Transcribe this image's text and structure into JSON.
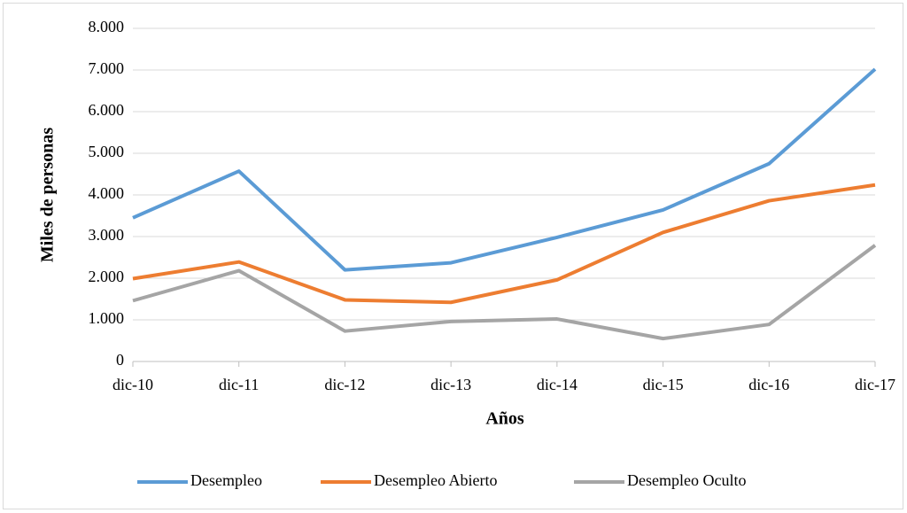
{
  "chart_data": {
    "type": "line",
    "categories": [
      "dic-10",
      "dic-11",
      "dic-12",
      "dic-13",
      "dic-14",
      "dic-15",
      "dic-16",
      "dic-17"
    ],
    "series": [
      {
        "name": "Desempleo",
        "color": "#5b9bd5",
        "values": [
          3450,
          4570,
          2200,
          2370,
          2980,
          3640,
          4750,
          7020
        ]
      },
      {
        "name": "Desempleo Abierto",
        "color": "#ed7d31",
        "values": [
          1990,
          2390,
          1480,
          1420,
          1960,
          3100,
          3860,
          4240
        ]
      },
      {
        "name": "Desempleo Oculto",
        "color": "#a5a5a5",
        "values": [
          1460,
          2180,
          730,
          960,
          1020,
          550,
          890,
          2790
        ]
      }
    ],
    "xlabel": "Años",
    "ylabel": "Miles de personas",
    "ylim": [
      0,
      8000
    ],
    "yticks": [
      0,
      {
        "value": 1000,
        "label": "1.000"
      },
      {
        "value": 2000,
        "label": "2.000"
      },
      {
        "value": 3000,
        "label": "3.000"
      },
      {
        "value": 4000,
        "label": "4.000"
      },
      {
        "value": 5000,
        "label": "5.000"
      },
      {
        "value": 6000,
        "label": "6.000"
      },
      {
        "value": 7000,
        "label": "7.000"
      },
      {
        "value": 8000,
        "label": "8.000"
      }
    ],
    "grid": true,
    "legend": "bottom"
  }
}
